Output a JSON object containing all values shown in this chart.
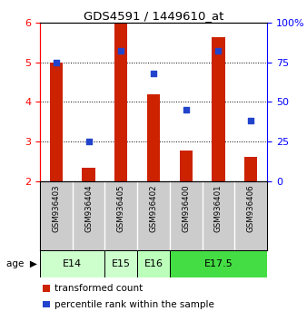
{
  "title": "GDS4591 / 1449610_at",
  "samples": [
    "GSM936403",
    "GSM936404",
    "GSM936405",
    "GSM936402",
    "GSM936400",
    "GSM936401",
    "GSM936406"
  ],
  "transformed_counts": [
    5.0,
    2.35,
    6.0,
    4.2,
    2.78,
    5.62,
    2.62
  ],
  "percentile_pct": [
    75,
    25,
    82,
    68,
    45,
    82,
    38
  ],
  "age_spans": [
    {
      "label": "E14",
      "cols": [
        0,
        1
      ],
      "color": "#ccffcc"
    },
    {
      "label": "E15",
      "cols": [
        2
      ],
      "color": "#ccffcc"
    },
    {
      "label": "E16",
      "cols": [
        3
      ],
      "color": "#bbffbb"
    },
    {
      "label": "E17.5",
      "cols": [
        4,
        5,
        6
      ],
      "color": "#44dd44"
    }
  ],
  "ylim_left": [
    2,
    6
  ],
  "ylim_right": [
    0,
    100
  ],
  "bar_color": "#cc2200",
  "dot_color": "#2244cc",
  "bar_bottom": 2.0,
  "yticks_left": [
    2,
    3,
    4,
    5,
    6
  ],
  "yticks_right": [
    0,
    25,
    50,
    75,
    100
  ],
  "legend_red": "transformed count",
  "legend_blue": "percentile rank within the sample",
  "gsm_box_color": "#cccccc",
  "age_label": "age"
}
